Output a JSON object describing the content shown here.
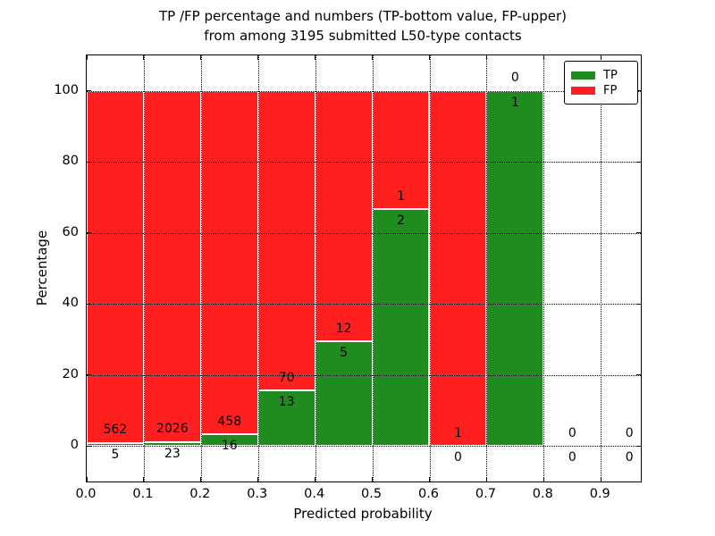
{
  "figure": {
    "title_line1": "TP /FP percentage and numbers (TP-bottom value, FP-upper)",
    "title_line2": "from among 3195 submitted L50-type contacts",
    "xlabel": "Predicted probability",
    "ylabel": "Percentage"
  },
  "chart_data": {
    "type": "bar",
    "stacked": true,
    "title": "TP /FP percentage and numbers (TP-bottom value, FP-upper) from among 3195 submitted L50-type contacts",
    "xlabel": "Predicted probability",
    "ylabel": "Percentage",
    "xlim": [
      0,
      0.97
    ],
    "ylim": [
      -10,
      110
    ],
    "x_ticks": [
      "0.0",
      "0.1",
      "0.2",
      "0.3",
      "0.4",
      "0.5",
      "0.6",
      "0.7",
      "0.8",
      "0.9"
    ],
    "y_ticks": [
      0,
      20,
      40,
      60,
      80,
      100
    ],
    "grid": true,
    "grid_style": "dotted",
    "bar_edge_color": "#ffffff",
    "series_meta": [
      {
        "name": "TP",
        "color": "#1f8c1f"
      },
      {
        "name": "FP",
        "color": "#ff1f1f"
      }
    ],
    "bins": [
      {
        "x0": 0.0,
        "x1": 0.1,
        "tp": 5,
        "fp": 562,
        "tp_pct": 0.88
      },
      {
        "x0": 0.1,
        "x1": 0.2,
        "tp": 23,
        "fp": 2026,
        "tp_pct": 1.12
      },
      {
        "x0": 0.2,
        "x1": 0.3,
        "tp": 16,
        "fp": 458,
        "tp_pct": 3.38
      },
      {
        "x0": 0.3,
        "x1": 0.4,
        "tp": 13,
        "fp": 70,
        "tp_pct": 15.66
      },
      {
        "x0": 0.4,
        "x1": 0.5,
        "tp": 5,
        "fp": 12,
        "tp_pct": 29.41
      },
      {
        "x0": 0.5,
        "x1": 0.6,
        "tp": 2,
        "fp": 1,
        "tp_pct": 66.67
      },
      {
        "x0": 0.6,
        "x1": 0.7,
        "tp": 0,
        "fp": 1,
        "tp_pct": 0
      },
      {
        "x0": 0.7,
        "x1": 0.8,
        "tp": 1,
        "fp": 0,
        "tp_pct": 100
      },
      {
        "x0": 0.8,
        "x1": 0.9,
        "tp": 0,
        "fp": 0,
        "tp_pct": 0
      },
      {
        "x0": 0.9,
        "x1": 1.0,
        "tp": 0,
        "fp": 0,
        "tp_pct": 0
      }
    ],
    "legend": {
      "position": "upper right",
      "entries": [
        {
          "label": "TP",
          "color": "#1f8c1f"
        },
        {
          "label": "FP",
          "color": "#ff1f1f"
        }
      ]
    }
  }
}
